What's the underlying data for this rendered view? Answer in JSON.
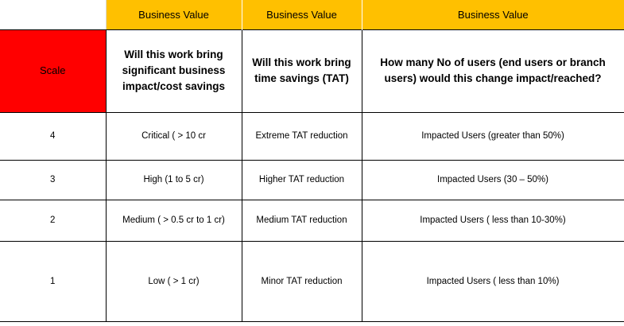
{
  "band": {
    "business_value_1": "Business Value",
    "business_value_2": "Business Value",
    "business_value_3": "Business Value"
  },
  "header": {
    "scale": "Scale",
    "impact_question": "Will this work bring significant business impact/cost savings",
    "tat_question": "Will this work bring time savings (TAT)",
    "users_question": "How many No of users (end users or branch users) would this change impact/reached?"
  },
  "rows": [
    {
      "scale": "4",
      "impact": "Critical ( > 10 cr",
      "tat": "Extreme TAT reduction",
      "users": "Impacted Users (greater than 50%)"
    },
    {
      "scale": "3",
      "impact": "High (1 to 5 cr)",
      "tat": "Higher TAT reduction",
      "users": "Impacted Users (30 – 50%)"
    },
    {
      "scale": "2",
      "impact": "Medium ( > 0.5 cr to 1 cr)",
      "tat": "Medium TAT reduction",
      "users": "Impacted Users ( less than 10-30%)"
    },
    {
      "scale": "1",
      "impact": "Low ( > 1 cr)",
      "tat": "Minor TAT reduction",
      "users": "Impacted Users ( less than 10%)"
    }
  ],
  "colors": {
    "band_background": "#ffc000",
    "scale_header_background": "#ff0000"
  }
}
